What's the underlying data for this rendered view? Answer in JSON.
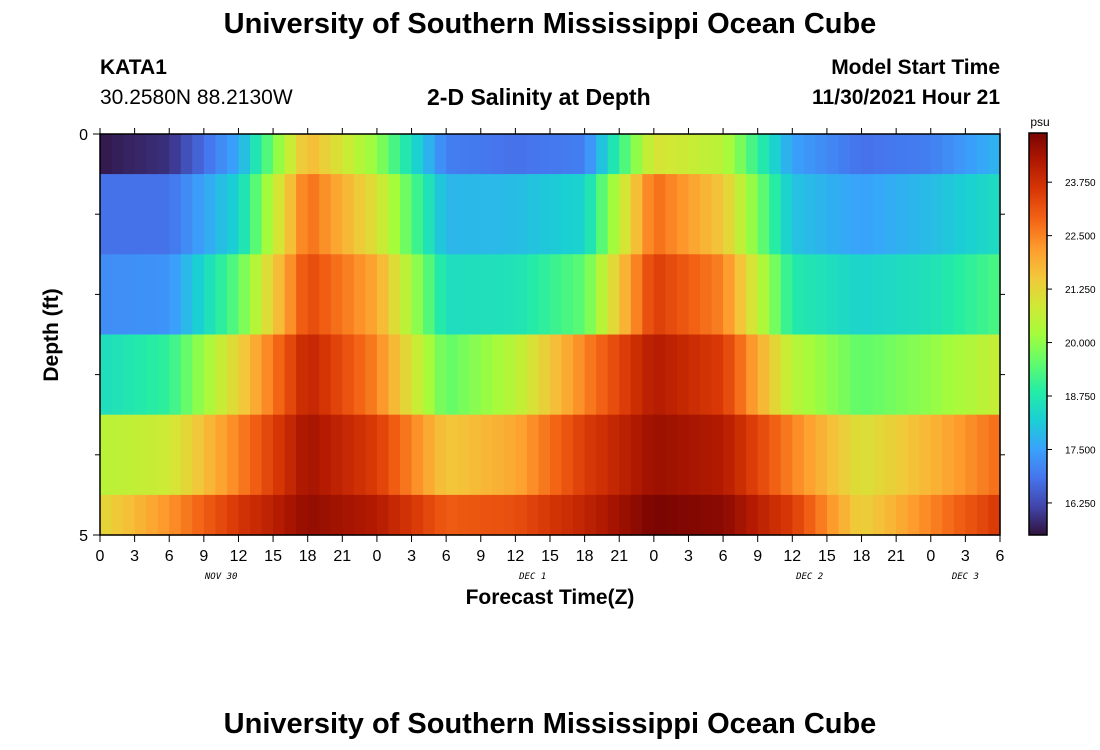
{
  "page": {
    "title": "University of Southern Mississippi Ocean Cube",
    "footer_title": "University of Southern Mississippi Ocean Cube",
    "station_name": "KATA1",
    "station_coords": "30.2580N  88.2130W",
    "plot_title": "2-D Salinity at Depth",
    "model_start_label": "Model Start Time",
    "model_start_value": "11/30/2021 Hour 21"
  },
  "chart_data": {
    "type": "heatmap",
    "title": "2-D Salinity at Depth",
    "xlabel": "Forecast Time(Z)",
    "ylabel": "Depth (ft)",
    "x_tick_labels": [
      "0",
      "3",
      "6",
      "9",
      "12",
      "15",
      "18",
      "21",
      "0",
      "3",
      "6",
      "9",
      "12",
      "15",
      "18",
      "21",
      "0",
      "3",
      "6",
      "9",
      "12",
      "15",
      "18",
      "21",
      "0",
      "3",
      "6"
    ],
    "date_labels": [
      {
        "label": "NOV 30",
        "at_tick": 3.5
      },
      {
        "label": "DEC 1",
        "at_tick": 12.5
      },
      {
        "label": "DEC 2",
        "at_tick": 20.5
      },
      {
        "label": "DEC 3",
        "at_tick": 25.0
      }
    ],
    "x_range_hours": [
      0,
      78
    ],
    "y_range_ft": [
      0,
      5
    ],
    "y_tick_labels": [
      {
        "value": 0,
        "label": "0"
      },
      {
        "value": 5,
        "label": "5"
      }
    ],
    "y_minor_ticks": [
      1,
      2,
      3,
      4
    ],
    "depth_layers_ft": [
      [
        0,
        0.5
      ],
      [
        0.5,
        1.5
      ],
      [
        1.5,
        2.5
      ],
      [
        2.5,
        3.5
      ],
      [
        3.5,
        4.5
      ],
      [
        4.5,
        5
      ]
    ],
    "hours": [
      0,
      6,
      12,
      18,
      24,
      30,
      36,
      42,
      48,
      54,
      60,
      66,
      72,
      78
    ],
    "salinity_psu": [
      [
        15.6,
        15.9,
        17.6,
        21.8,
        20.0,
        17.0,
        16.8,
        17.0,
        21.0,
        20.5,
        17.5,
        16.8,
        17.0,
        17.8
      ],
      [
        16.8,
        16.8,
        18.3,
        22.8,
        21.0,
        17.8,
        17.9,
        18.3,
        22.8,
        21.5,
        18.0,
        17.5,
        17.9,
        18.5
      ],
      [
        17.2,
        17.3,
        19.5,
        23.3,
        22.0,
        18.5,
        18.6,
        19.5,
        23.5,
        22.5,
        18.8,
        18.3,
        18.6,
        19.3
      ],
      [
        18.5,
        19.0,
        21.3,
        24.0,
        22.5,
        19.5,
        20.5,
        22.5,
        24.2,
        23.5,
        20.5,
        19.5,
        20.0,
        20.7
      ],
      [
        20.5,
        20.8,
        22.5,
        24.4,
        23.5,
        21.5,
        22.0,
        23.5,
        24.5,
        24.2,
        22.5,
        21.0,
        21.8,
        22.8
      ],
      [
        21.2,
        22.3,
        23.6,
        24.6,
        24.2,
        23.0,
        23.2,
        24.0,
        24.9,
        24.7,
        23.5,
        21.3,
        22.5,
        23.6
      ]
    ],
    "colorbar": {
      "unit": "psu",
      "vmin": 15.5,
      "vmax": 24.9,
      "ticks": [
        {
          "value": 16.25,
          "label": "16.250"
        },
        {
          "value": 17.5,
          "label": "17.500"
        },
        {
          "value": 18.75,
          "label": "18.750"
        },
        {
          "value": 20.0,
          "label": "20.000"
        },
        {
          "value": 21.25,
          "label": "21.250"
        },
        {
          "value": 22.5,
          "label": "22.500"
        },
        {
          "value": 23.75,
          "label": "23.750"
        }
      ],
      "colormap": [
        "#30123b",
        "#4145ab",
        "#4675ed",
        "#39a2fc",
        "#1bcfd4",
        "#24eca6",
        "#61fc6c",
        "#a4fc3b",
        "#d1e834",
        "#f3c63a",
        "#fe9b2d",
        "#f36315",
        "#d93806",
        "#b11901",
        "#7a0402"
      ]
    }
  }
}
